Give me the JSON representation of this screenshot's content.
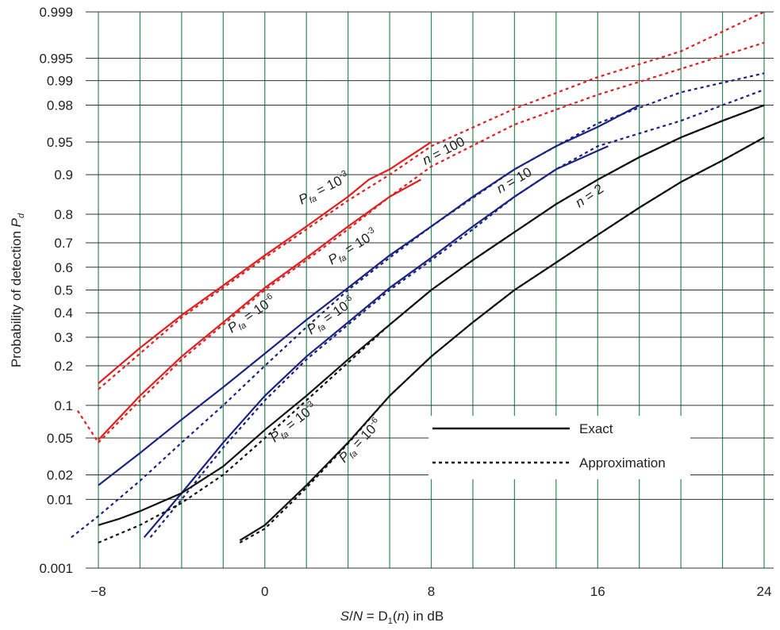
{
  "chart_data": {
    "type": "line",
    "xlabel": "S/N = D₁(n) in dB",
    "xlabel_parts": {
      "s": "S",
      "slash": "/",
      "n": "N",
      "eq": " = D",
      "sub": "1",
      "open": "(",
      "narg": "n",
      "close": ") in dB"
    },
    "ylabel": "Probability of detection P_d",
    "ylabel_parts": {
      "main": "Probability of detection ",
      "p": "P",
      "sub": "d"
    },
    "xlim": [
      -8,
      24
    ],
    "ylim": [
      0.001,
      0.999
    ],
    "y_scale": "normal-probability",
    "grid": true,
    "x_ticks": [
      "−8",
      "0",
      "8",
      "16",
      "24"
    ],
    "x_tick_values": [
      -8,
      0,
      8,
      16,
      24
    ],
    "y_ticks": [
      "0.001",
      "0.01",
      "0.02",
      "0.05",
      "0.1",
      "0.2",
      "0.3",
      "0.4",
      "0.5",
      "0.6",
      "0.7",
      "0.8",
      "0.9",
      "0.95",
      "0.98",
      "0.99",
      "0.995",
      "0.999"
    ],
    "y_tick_values": [
      0.001,
      0.01,
      0.02,
      0.05,
      0.1,
      0.2,
      0.3,
      0.4,
      0.5,
      0.6,
      0.7,
      0.8,
      0.9,
      0.95,
      0.98,
      0.99,
      0.995,
      0.999
    ],
    "legend": {
      "placement": "center-right",
      "entries": [
        {
          "label": "Exact",
          "style": "solid"
        },
        {
          "label": "Approximation",
          "style": "dotted"
        }
      ]
    },
    "colors": {
      "n100": "#e02020",
      "n10": "#1a237e",
      "n2": "#111111",
      "grid_vertical": "#2e8b57",
      "grid_horizontal": "#333333"
    },
    "series": [
      {
        "group": "n100",
        "pfa": "1e-3",
        "style": "solid",
        "x": [
          -8,
          -6,
          -4,
          -2,
          0,
          2,
          4,
          5,
          6,
          8
        ],
        "y": [
          0.15,
          0.26,
          0.39,
          0.52,
          0.65,
          0.76,
          0.85,
          0.89,
          0.91,
          0.95
        ]
      },
      {
        "group": "n100",
        "pfa": "1e-3",
        "style": "dotted",
        "x": [
          -8,
          -6,
          -4,
          -2,
          0,
          2,
          4,
          6,
          8,
          12,
          16,
          20,
          24
        ],
        "y": [
          0.135,
          0.24,
          0.38,
          0.51,
          0.64,
          0.75,
          0.84,
          0.9,
          0.945,
          0.978,
          0.991,
          0.996,
          0.999
        ]
      },
      {
        "group": "n100",
        "pfa": "1e-6",
        "style": "solid",
        "x": [
          -8,
          -6,
          -4,
          -2,
          0,
          2,
          4,
          6,
          7.5
        ],
        "y": [
          0.048,
          0.12,
          0.23,
          0.36,
          0.51,
          0.64,
          0.76,
          0.85,
          0.89
        ]
      },
      {
        "group": "n100",
        "pfa": "1e-6",
        "style": "dotted",
        "x": [
          -9,
          -8,
          -6,
          -4,
          -2,
          0,
          2,
          4,
          6,
          8,
          12,
          16,
          20,
          24
        ],
        "y": [
          0.09,
          0.045,
          0.11,
          0.22,
          0.35,
          0.5,
          0.63,
          0.75,
          0.85,
          0.915,
          0.967,
          0.985,
          0.993,
          0.997
        ]
      },
      {
        "group": "n10",
        "pfa": "1e-3",
        "style": "solid",
        "x": [
          -8,
          -6,
          -4,
          -2,
          0,
          2,
          4,
          6,
          8,
          10,
          12,
          14,
          16,
          18
        ],
        "y": [
          0.015,
          0.035,
          0.075,
          0.14,
          0.24,
          0.37,
          0.51,
          0.65,
          0.76,
          0.85,
          0.91,
          0.945,
          0.965,
          0.98
        ]
      },
      {
        "group": "n10",
        "pfa": "1e-3",
        "style": "dotted",
        "x": [
          -9.3,
          -8,
          -6,
          -4,
          -2,
          0,
          2,
          4,
          6,
          8,
          12,
          16,
          20,
          24
        ],
        "y": [
          0.003,
          0.006,
          0.017,
          0.045,
          0.1,
          0.2,
          0.34,
          0.5,
          0.64,
          0.76,
          0.91,
          0.968,
          0.986,
          0.992
        ]
      },
      {
        "group": "n10",
        "pfa": "1e-6",
        "style": "solid",
        "x": [
          -5.8,
          -4,
          -2,
          0,
          2,
          4,
          6,
          8,
          10,
          12,
          14,
          16.5
        ],
        "y": [
          0.003,
          0.012,
          0.045,
          0.12,
          0.23,
          0.36,
          0.51,
          0.64,
          0.76,
          0.85,
          0.91,
          0.945
        ]
      },
      {
        "group": "n10",
        "pfa": "1e-6",
        "style": "dotted",
        "x": [
          -5.5,
          -4,
          -2,
          0,
          2,
          4,
          6,
          8,
          10,
          12,
          14,
          16,
          20,
          24
        ],
        "y": [
          0.003,
          0.01,
          0.04,
          0.11,
          0.22,
          0.35,
          0.5,
          0.63,
          0.75,
          0.85,
          0.91,
          0.945,
          0.97,
          0.987
        ]
      },
      {
        "group": "n2",
        "pfa": "1e-3",
        "style": "solid",
        "x": [
          -8,
          -7,
          -6,
          -4,
          -2,
          0,
          2,
          4,
          6,
          8,
          10,
          12,
          14,
          16,
          18,
          20,
          22,
          24
        ],
        "y": [
          0.0045,
          0.0055,
          0.007,
          0.012,
          0.025,
          0.06,
          0.12,
          0.22,
          0.35,
          0.5,
          0.63,
          0.74,
          0.83,
          0.89,
          0.93,
          0.955,
          0.97,
          0.98
        ]
      },
      {
        "group": "n2",
        "pfa": "1e-3",
        "style": "dotted",
        "x": [
          -8,
          -6,
          -4,
          -2,
          0,
          2,
          4,
          6,
          8,
          10,
          12,
          14,
          16,
          18,
          20,
          22,
          24
        ],
        "y": [
          0.0025,
          0.0045,
          0.009,
          0.02,
          0.05,
          0.11,
          0.21,
          0.35,
          0.5,
          0.63,
          0.74,
          0.83,
          0.89,
          0.93,
          0.955,
          0.97,
          0.98
        ]
      },
      {
        "group": "n2",
        "pfa": "1e-6",
        "style": "solid",
        "x": [
          -1.2,
          0,
          2,
          4,
          6,
          8,
          10,
          12,
          14,
          16,
          18,
          20,
          22,
          24
        ],
        "y": [
          0.0027,
          0.0045,
          0.015,
          0.045,
          0.12,
          0.23,
          0.36,
          0.5,
          0.62,
          0.73,
          0.82,
          0.885,
          0.925,
          0.955
        ]
      },
      {
        "group": "n2",
        "pfa": "1e-6",
        "style": "dotted",
        "x": [
          -1.2,
          0,
          2,
          4,
          6,
          8,
          10,
          12,
          14,
          16,
          18,
          20,
          22,
          24
        ],
        "y": [
          0.0025,
          0.004,
          0.014,
          0.044,
          0.12,
          0.23,
          0.36,
          0.5,
          0.62,
          0.73,
          0.82,
          0.885,
          0.925,
          0.955
        ]
      }
    ],
    "annotations": [
      {
        "id": "n100",
        "n": "n",
        "text": " = 100"
      },
      {
        "id": "n10",
        "n": "n",
        "text": " = 10"
      },
      {
        "id": "n2",
        "n": "n",
        "text": " = 2"
      },
      {
        "id": "pfa-red-3",
        "p": "P",
        "sub": "fa",
        "eq": " = 10",
        "sup": "-3"
      },
      {
        "id": "pfa-red-6",
        "p": "P",
        "sub": "fa",
        "eq": " = 10",
        "sup": "-6"
      },
      {
        "id": "pfa-blue-3",
        "p": "P",
        "sub": "fa",
        "eq": " = 10",
        "sup": "-3"
      },
      {
        "id": "pfa-blue-6",
        "p": "P",
        "sub": "fa",
        "eq": " = 10",
        "sup": "-6"
      },
      {
        "id": "pfa-black-3",
        "p": "P",
        "sub": "fa",
        "eq": " = 10",
        "sup": "-3"
      },
      {
        "id": "pfa-black-6",
        "p": "P",
        "sub": "fa",
        "eq": " = 10",
        "sup": "-6"
      }
    ]
  }
}
